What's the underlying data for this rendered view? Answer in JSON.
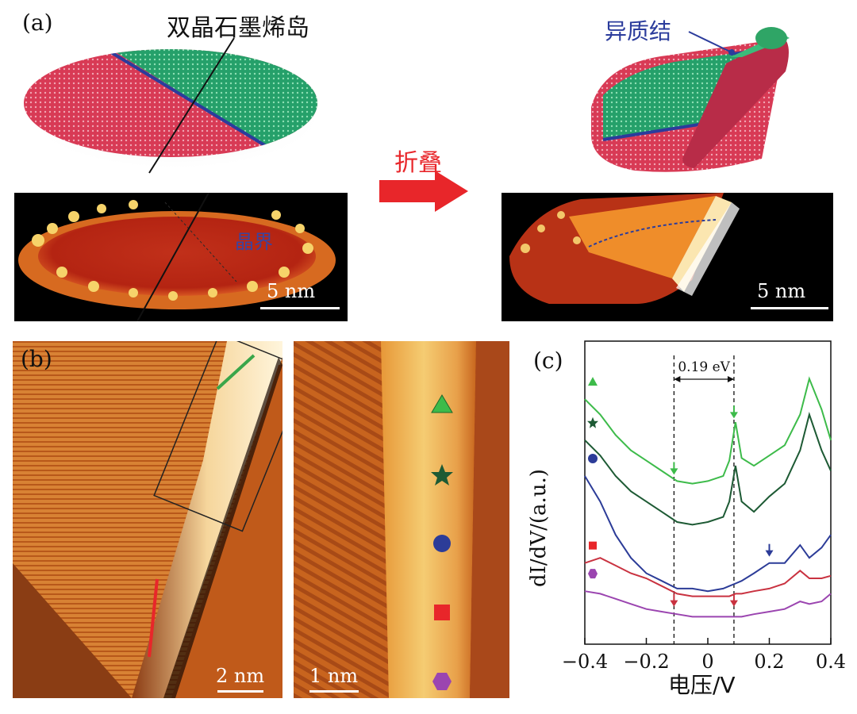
{
  "panel_a": {
    "label": "(a)",
    "title_island": "双晶石墨烯岛",
    "heterojunction_label": "异质结",
    "fold_label": "折叠",
    "grain_boundary_label": "晶界",
    "scale_left": "5 nm",
    "scale_right": "5 nm"
  },
  "panel_b": {
    "label": "(b)",
    "scale_left": "2 nm",
    "scale_right": "1 nm",
    "markers": [
      "triangle",
      "star",
      "circle",
      "square",
      "hexagon"
    ]
  },
  "colors": {
    "arrow_red": "#e8262a",
    "heterojunction_blue": "#2b3c9c",
    "green": "#3aa64a",
    "dark_green": "#1d5a34",
    "blue": "#2c3c98",
    "red": "#c93240",
    "purple": "#9b45b0"
  },
  "chart_data": {
    "type": "line",
    "label": "(c)",
    "xlabel": "电压/V",
    "ylabel": "dI/dV/(a.u.)",
    "xlim": [
      -0.4,
      0.4
    ],
    "xticks": [
      "−0.4",
      "−0.2",
      "0",
      "0.2",
      "0.4"
    ],
    "xtick_values": [
      -0.4,
      -0.2,
      0,
      0.2,
      0.4
    ],
    "annotation": "0.19 eV",
    "dashed_lines_x": [
      -0.11,
      0.085
    ],
    "x": [
      -0.4,
      -0.35,
      -0.3,
      -0.25,
      -0.2,
      -0.15,
      -0.1,
      -0.05,
      0.0,
      0.05,
      0.07,
      0.09,
      0.11,
      0.15,
      0.2,
      0.25,
      0.3,
      0.33,
      0.37,
      0.4
    ],
    "series": [
      {
        "name": "triangle",
        "color": "#3dbb4a",
        "values": [
          9.2,
          8.6,
          7.8,
          7.2,
          6.8,
          6.4,
          6.0,
          5.9,
          6.0,
          6.2,
          6.8,
          8.3,
          6.9,
          6.6,
          7.0,
          7.4,
          8.6,
          10.0,
          8.8,
          7.6
        ]
      },
      {
        "name": "star",
        "color": "#1d5a34",
        "values": [
          7.6,
          7.0,
          6.2,
          5.6,
          5.2,
          4.8,
          4.4,
          4.3,
          4.4,
          4.6,
          5.2,
          6.6,
          5.2,
          4.8,
          5.4,
          5.9,
          7.2,
          8.6,
          7.2,
          6.4
        ]
      },
      {
        "name": "circle",
        "color": "#2c3c98",
        "values": [
          6.2,
          5.2,
          3.9,
          3.0,
          2.4,
          2.1,
          1.8,
          1.8,
          1.7,
          1.8,
          1.9,
          2.0,
          2.1,
          2.4,
          2.8,
          2.8,
          3.5,
          3.0,
          3.4,
          3.9
        ]
      },
      {
        "name": "square",
        "color": "#c93240",
        "values": [
          2.8,
          3.0,
          2.7,
          2.4,
          2.2,
          1.9,
          1.6,
          1.5,
          1.5,
          1.5,
          1.5,
          1.6,
          1.6,
          1.7,
          1.8,
          2.0,
          2.5,
          2.2,
          2.2,
          2.3
        ]
      },
      {
        "name": "hexagon",
        "color": "#9b45b0",
        "values": [
          1.7,
          1.6,
          1.4,
          1.2,
          1.0,
          0.9,
          0.8,
          0.7,
          0.7,
          0.7,
          0.7,
          0.7,
          0.7,
          0.8,
          0.9,
          1.0,
          1.3,
          1.2,
          1.3,
          1.6
        ]
      }
    ]
  }
}
